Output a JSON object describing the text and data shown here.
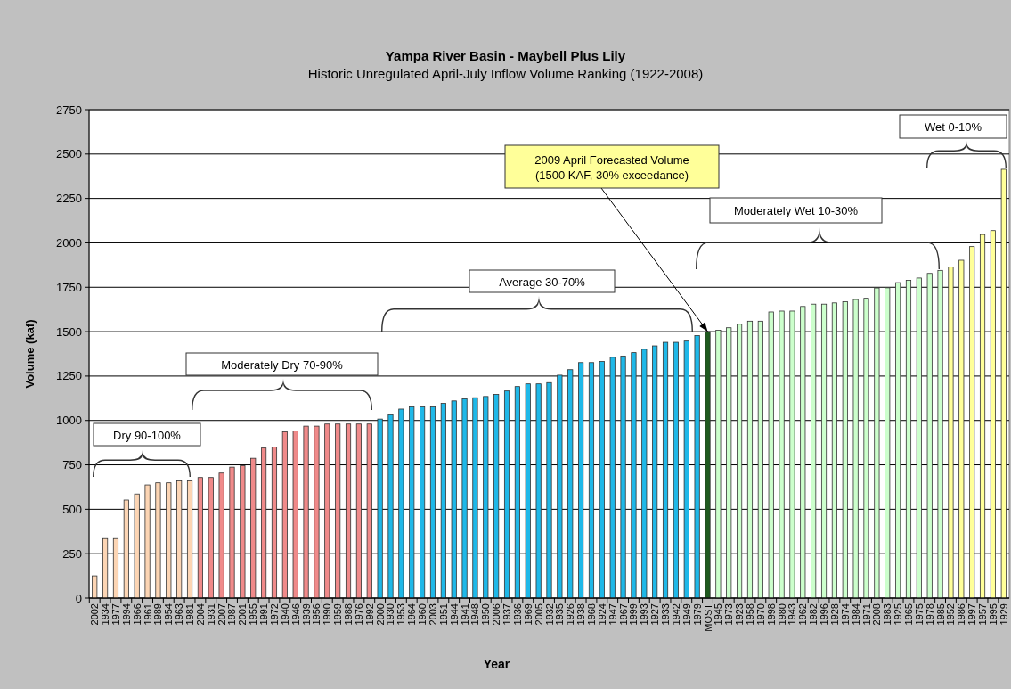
{
  "chart_data": {
    "type": "bar",
    "title": "Yampa River Basin - Maybell Plus Lily",
    "subtitle": "Historic Unregulated April-July Inflow Volume Ranking (1922-2008)",
    "xlabel": "Year",
    "ylabel": "Volume (kaf)",
    "categories": [
      "2002",
      "1934",
      "1977",
      "1994",
      "1966",
      "1961",
      "1989",
      "1954",
      "1963",
      "1981",
      "2004",
      "1931",
      "2007",
      "1987",
      "2001",
      "1955",
      "1991",
      "1972",
      "1940",
      "1946",
      "1939",
      "1956",
      "1990",
      "1959",
      "1988",
      "1976",
      "1992",
      "2000",
      "1930",
      "1953",
      "1964",
      "1960",
      "2003",
      "1951",
      "1944",
      "1941",
      "1948",
      "1950",
      "2006",
      "1937",
      "1936",
      "1969",
      "2005",
      "1932",
      "1935",
      "1926",
      "1938",
      "1968",
      "1924",
      "1947",
      "1967",
      "1999",
      "1993",
      "1927",
      "1933",
      "1942",
      "1949",
      "1979",
      "MOST",
      "1945",
      "1973",
      "1923",
      "1958",
      "1970",
      "1998",
      "1980",
      "1943",
      "1962",
      "1982",
      "1996",
      "1928",
      "1974",
      "1984",
      "1971",
      "2008",
      "1983",
      "1925",
      "1965",
      "1975",
      "1978",
      "1985",
      "1952",
      "1986",
      "1997",
      "1957",
      "1995",
      "1929"
    ],
    "values": [
      125,
      335,
      335,
      552,
      586,
      637,
      649,
      649,
      660,
      660,
      679,
      679,
      704,
      737,
      745,
      787,
      845,
      851,
      936,
      941,
      968,
      968,
      980,
      980,
      980,
      980,
      980,
      1008,
      1032,
      1064,
      1076,
      1076,
      1076,
      1096,
      1110,
      1122,
      1128,
      1135,
      1147,
      1166,
      1191,
      1206,
      1206,
      1213,
      1255,
      1286,
      1326,
      1326,
      1332,
      1356,
      1363,
      1382,
      1401,
      1420,
      1440,
      1440,
      1447,
      1478,
      1500,
      1508,
      1522,
      1542,
      1559,
      1559,
      1611,
      1616,
      1616,
      1642,
      1655,
      1655,
      1662,
      1669,
      1681,
      1688,
      1746,
      1747,
      1776,
      1789,
      1802,
      1828,
      1845,
      1864,
      1902,
      1979,
      2047,
      2069,
      2414
    ],
    "colors": [
      "#fcd5b4",
      "#fcd5b4",
      "#fcd5b4",
      "#fcd5b4",
      "#fcd5b4",
      "#fcd5b4",
      "#fcd5b4",
      "#fcd5b4",
      "#fcd5b4",
      "#fcd5b4",
      "#f08a8a",
      "#f08a8a",
      "#f08a8a",
      "#f08a8a",
      "#f08a8a",
      "#f08a8a",
      "#f08a8a",
      "#f08a8a",
      "#f08a8a",
      "#f08a8a",
      "#f08a8a",
      "#f08a8a",
      "#f08a8a",
      "#f08a8a",
      "#f08a8a",
      "#f08a8a",
      "#f08a8a",
      "#1fb8e8",
      "#1fb8e8",
      "#1fb8e8",
      "#1fb8e8",
      "#1fb8e8",
      "#1fb8e8",
      "#1fb8e8",
      "#1fb8e8",
      "#1fb8e8",
      "#1fb8e8",
      "#1fb8e8",
      "#1fb8e8",
      "#1fb8e8",
      "#1fb8e8",
      "#1fb8e8",
      "#1fb8e8",
      "#1fb8e8",
      "#1fb8e8",
      "#1fb8e8",
      "#1fb8e8",
      "#1fb8e8",
      "#1fb8e8",
      "#1fb8e8",
      "#1fb8e8",
      "#1fb8e8",
      "#1fb8e8",
      "#1fb8e8",
      "#1fb8e8",
      "#1fb8e8",
      "#1fb8e8",
      "#1fb8e8",
      "#1e5a1e",
      "#ccffcc",
      "#ccffcc",
      "#ccffcc",
      "#ccffcc",
      "#ccffcc",
      "#ccffcc",
      "#ccffcc",
      "#ccffcc",
      "#ccffcc",
      "#ccffcc",
      "#ccffcc",
      "#ccffcc",
      "#ccffcc",
      "#ccffcc",
      "#ccffcc",
      "#ccffcc",
      "#ccffcc",
      "#ccffcc",
      "#ccffcc",
      "#ccffcc",
      "#ccffcc",
      "#ccffcc",
      "#ffff99",
      "#ffff99",
      "#ffff99",
      "#ffff99",
      "#ffff99",
      "#ffff99"
    ],
    "ylim": [
      0,
      2750
    ],
    "yticks": [
      0,
      250,
      500,
      750,
      1000,
      1250,
      1500,
      1750,
      2000,
      2250,
      2500,
      2750
    ],
    "grid": "y",
    "annotations": [
      "Dry 90-100%",
      "Moderately Dry 70-90%",
      "Average 30-70%",
      {
        "text": "2009 April Forecasted Volume\n(1500 KAF, 30% exceedance)",
        "x": "MOST",
        "y": 1500
      },
      "Moderately Wet 10-30%",
      "Wet 0-10%"
    ]
  }
}
